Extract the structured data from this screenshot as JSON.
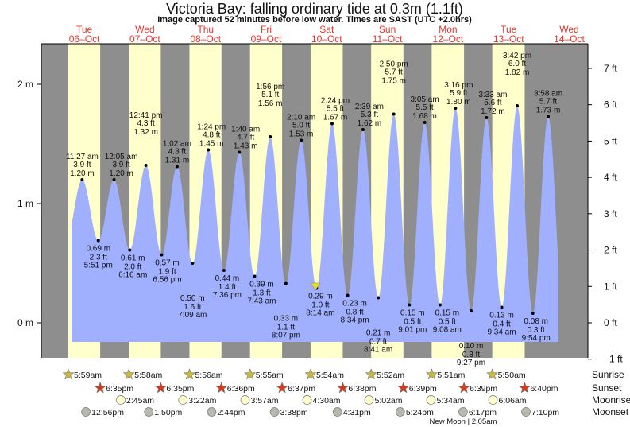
{
  "title": "Victoria Bay: falling  ordinary tide at 0.3m (1.1ft)",
  "subtitle": "Image captured 52 minutes before low water. Times are SAST (UTC +2.0hrs)",
  "colors": {
    "water": "#a0b0ff",
    "night": "#8e8e8e",
    "day": "#ffffcc",
    "daylabel": "#e8332a",
    "sun": "#c8b840",
    "sunset": "#d43a22",
    "moonrise": "#ffffcc",
    "moonset": "#b8b8b0"
  },
  "days": [
    {
      "dow": "Tue",
      "date": "06–Oct"
    },
    {
      "dow": "Wed",
      "date": "07–Oct"
    },
    {
      "dow": "Thu",
      "date": "08–Oct"
    },
    {
      "dow": "Fri",
      "date": "09–Oct"
    },
    {
      "dow": "Sat",
      "date": "10–Oct"
    },
    {
      "dow": "Sun",
      "date": "11–Oct"
    },
    {
      "dow": "Mon",
      "date": "12–Oct"
    },
    {
      "dow": "Tue",
      "date": "13–Oct"
    },
    {
      "dow": "Wed",
      "date": "14–Oct"
    }
  ],
  "chart_data": {
    "type": "area",
    "title": "Victoria Bay tide heights",
    "left_axis": {
      "unit": "m",
      "ticks": [
        "0 m",
        "1 m",
        "2 m"
      ],
      "values": [
        0,
        1,
        2
      ]
    },
    "right_axis": {
      "unit": "ft",
      "ticks": [
        "−1 ft",
        "0 ft",
        "1 ft",
        "2 ft",
        "3 ft",
        "4 ft",
        "5 ft",
        "6 ft",
        "7 ft"
      ],
      "values": [
        -1,
        0,
        1,
        2,
        3,
        4,
        5,
        6,
        7
      ]
    },
    "current": {
      "height_m": 0.3,
      "day": 4,
      "time": "7:22 am"
    },
    "extremes": [
      {
        "type": "high",
        "day": 0,
        "time": "11:27 am",
        "h": 11.45,
        "m": "1.20 m",
        "ft": "3.9 ft",
        "val": 1.2
      },
      {
        "type": "low",
        "day": 0,
        "time": "5:51 pm",
        "h": 17.85,
        "m": "0.69 m",
        "ft": "2.3 ft",
        "val": 0.69
      },
      {
        "type": "high",
        "day": 1,
        "time": "12:05 am",
        "h": 0.083,
        "m": "1.20 m",
        "ft": "3.9 ft",
        "val": 1.2
      },
      {
        "type": "low",
        "day": 1,
        "time": "6:16 am",
        "h": 6.267,
        "m": "0.61 m",
        "ft": "2.0 ft",
        "val": 0.61
      },
      {
        "type": "high",
        "day": 1,
        "time": "12:41 pm",
        "h": 12.683,
        "m": "1.32 m",
        "ft": "4.3 ft",
        "val": 1.32
      },
      {
        "type": "low",
        "day": 1,
        "time": "6:56 pm",
        "h": 18.933,
        "m": "0.57 m",
        "ft": "1.9 ft",
        "val": 0.57
      },
      {
        "type": "high",
        "day": 2,
        "time": "1:02 am",
        "h": 1.033,
        "m": "1.31 m",
        "ft": "4.3 ft",
        "val": 1.31
      },
      {
        "type": "low",
        "day": 2,
        "time": "7:09 am",
        "h": 7.15,
        "m": "0.50 m",
        "ft": "1.6 ft",
        "val": 0.5
      },
      {
        "type": "high",
        "day": 2,
        "time": "1:24 pm",
        "h": 13.4,
        "m": "1.45 m",
        "ft": "4.8 ft",
        "val": 1.45
      },
      {
        "type": "low",
        "day": 2,
        "time": "7:36 pm",
        "h": 19.6,
        "m": "0.44 m",
        "ft": "1.4 ft",
        "val": 0.44
      },
      {
        "type": "high",
        "day": 3,
        "time": "1:40 am",
        "h": 1.667,
        "m": "1.43 m",
        "ft": "4.7 ft",
        "val": 1.43
      },
      {
        "type": "low",
        "day": 3,
        "time": "7:43 am",
        "h": 7.717,
        "m": "0.39 m",
        "ft": "1.3 ft",
        "val": 0.39
      },
      {
        "type": "high",
        "day": 3,
        "time": "1:56 pm",
        "h": 13.933,
        "m": "1.56 m",
        "ft": "5.1 ft",
        "val": 1.56
      },
      {
        "type": "low",
        "day": 3,
        "time": "8:07 pm",
        "h": 20.117,
        "m": "0.33 m",
        "ft": "1.1 ft",
        "val": 0.33
      },
      {
        "type": "high",
        "day": 4,
        "time": "2:10 am",
        "h": 2.167,
        "m": "1.53 m",
        "ft": "5.0 ft",
        "val": 1.53
      },
      {
        "type": "low",
        "day": 4,
        "time": "8:14 am",
        "h": 8.233,
        "m": "0.29 m",
        "ft": "1.0 ft",
        "val": 0.29
      },
      {
        "type": "high",
        "day": 4,
        "time": "2:24 pm",
        "h": 14.4,
        "m": "1.67 m",
        "ft": "5.5 ft",
        "val": 1.67
      },
      {
        "type": "low",
        "day": 4,
        "time": "8:34 pm",
        "h": 20.567,
        "m": "0.23 m",
        "ft": "0.8 ft",
        "val": 0.23
      },
      {
        "type": "high",
        "day": 5,
        "time": "2:39 am",
        "h": 2.65,
        "m": "1.62 m",
        "ft": "5.3 ft",
        "val": 1.62
      },
      {
        "type": "low",
        "day": 5,
        "time": "8:41 am",
        "h": 8.683,
        "m": "0.21 m",
        "ft": "0.7 ft",
        "val": 0.21
      },
      {
        "type": "high",
        "day": 5,
        "time": "2:50 pm",
        "h": 14.833,
        "m": "1.75 m",
        "ft": "5.7 ft",
        "val": 1.75
      },
      {
        "type": "low",
        "day": 5,
        "time": "9:01 pm",
        "h": 21.017,
        "m": "0.15 m",
        "ft": "0.5 ft",
        "val": 0.15
      },
      {
        "type": "high",
        "day": 6,
        "time": "3:05 am",
        "h": 3.083,
        "m": "1.68 m",
        "ft": "5.5 ft",
        "val": 1.68
      },
      {
        "type": "low",
        "day": 6,
        "time": "9:08 am",
        "h": 9.133,
        "m": "0.15 m",
        "ft": "0.5 ft",
        "val": 0.15
      },
      {
        "type": "high",
        "day": 6,
        "time": "3:16 pm",
        "h": 15.267,
        "m": "1.80 m",
        "ft": "5.9 ft",
        "val": 1.8
      },
      {
        "type": "low",
        "day": 6,
        "time": "9:27 pm",
        "h": 21.45,
        "m": "0.10 m",
        "ft": "0.3 ft",
        "val": 0.1
      },
      {
        "type": "high",
        "day": 7,
        "time": "3:33 am",
        "h": 3.55,
        "m": "1.72 m",
        "ft": "5.6 ft",
        "val": 1.72
      },
      {
        "type": "low",
        "day": 7,
        "time": "9:34 am",
        "h": 9.567,
        "m": "0.13 m",
        "ft": "0.4 ft",
        "val": 0.13
      },
      {
        "type": "high",
        "day": 7,
        "time": "3:42 pm",
        "h": 15.7,
        "m": "1.82 m",
        "ft": "6.0 ft",
        "val": 1.82
      },
      {
        "type": "low",
        "day": 7,
        "time": "9:54 pm",
        "h": 21.9,
        "m": "0.08 m",
        "ft": "0.3 ft",
        "val": 0.08
      },
      {
        "type": "high",
        "day": 8,
        "time": "3:58 am",
        "h": 3.967,
        "m": "1.73 m",
        "ft": "5.7 ft",
        "val": 1.73
      }
    ]
  },
  "astro": {
    "labels": {
      "sunrise": "Sunrise",
      "sunset": "Sunset",
      "moonrise": "Moonrise",
      "moonset": "Moonset"
    },
    "sunrise": [
      {
        "day": 0,
        "h": 5.983,
        "t": "5:59am"
      },
      {
        "day": 1,
        "h": 5.967,
        "t": "5:58am"
      },
      {
        "day": 2,
        "h": 5.933,
        "t": "5:56am"
      },
      {
        "day": 3,
        "h": 5.917,
        "t": "5:55am"
      },
      {
        "day": 4,
        "h": 5.9,
        "t": "5:54am"
      },
      {
        "day": 5,
        "h": 5.867,
        "t": "5:52am"
      },
      {
        "day": 6,
        "h": 5.85,
        "t": "5:51am"
      },
      {
        "day": 7,
        "h": 5.833,
        "t": "5:50am"
      }
    ],
    "sunset": [
      {
        "day": 0,
        "h": 18.583,
        "t": "6:35pm"
      },
      {
        "day": 1,
        "h": 18.583,
        "t": "6:35pm"
      },
      {
        "day": 2,
        "h": 18.6,
        "t": "6:36pm"
      },
      {
        "day": 3,
        "h": 18.617,
        "t": "6:37pm"
      },
      {
        "day": 4,
        "h": 18.633,
        "t": "6:38pm"
      },
      {
        "day": 5,
        "h": 18.65,
        "t": "6:39pm"
      },
      {
        "day": 6,
        "h": 18.65,
        "t": "6:39pm"
      },
      {
        "day": 7,
        "h": 18.667,
        "t": "6:40pm"
      }
    ],
    "moonrise": [
      {
        "day": 1,
        "h": 2.75,
        "t": "2:45am"
      },
      {
        "day": 2,
        "h": 3.367,
        "t": "3:22am"
      },
      {
        "day": 3,
        "h": 3.95,
        "t": "3:57am"
      },
      {
        "day": 4,
        "h": 4.5,
        "t": "4:30am"
      },
      {
        "day": 5,
        "h": 5.033,
        "t": "5:02am"
      },
      {
        "day": 6,
        "h": 5.567,
        "t": "5:34am"
      },
      {
        "day": 7,
        "h": 6.1,
        "t": "6:06am"
      }
    ],
    "moonset": [
      {
        "day": 0,
        "h": 12.933,
        "t": "12:56pm"
      },
      {
        "day": 1,
        "h": 13.833,
        "t": "1:50pm"
      },
      {
        "day": 2,
        "h": 14.733,
        "t": "2:44pm"
      },
      {
        "day": 3,
        "h": 15.633,
        "t": "3:38pm"
      },
      {
        "day": 4,
        "h": 16.517,
        "t": "4:31pm"
      },
      {
        "day": 5,
        "h": 17.4,
        "t": "5:24pm"
      },
      {
        "day": 6,
        "h": 18.283,
        "t": "6:17pm"
      },
      {
        "day": 7,
        "h": 19.167,
        "t": "7:10pm"
      }
    ],
    "moon_phase": "New Moon | 2:05am"
  }
}
